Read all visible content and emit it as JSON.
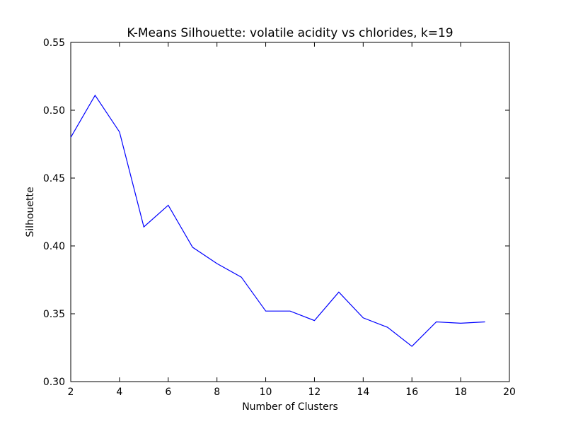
{
  "chart_data": {
    "type": "line",
    "title": "K-Means Silhouette: volatile acidity vs chlorides, k=19",
    "xlabel": "Number of Clusters",
    "ylabel": "Silhouette",
    "xlim": [
      2,
      20
    ],
    "ylim": [
      0.3,
      0.55
    ],
    "xticks": [
      2,
      4,
      6,
      8,
      10,
      12,
      14,
      16,
      18,
      20
    ],
    "yticks": [
      0.3,
      0.35,
      0.4,
      0.45,
      0.5,
      0.55
    ],
    "xtick_labels": [
      "2",
      "4",
      "6",
      "8",
      "10",
      "12",
      "14",
      "16",
      "18",
      "20"
    ],
    "ytick_labels": [
      "0.30",
      "0.35",
      "0.40",
      "0.45",
      "0.50",
      "0.55"
    ],
    "grid": false,
    "series": [
      {
        "color": "#0000ff",
        "x": [
          2,
          3,
          4,
          5,
          6,
          7,
          8,
          9,
          10,
          11,
          12,
          13,
          14,
          15,
          16,
          17,
          18,
          19
        ],
        "y": [
          0.48,
          0.511,
          0.484,
          0.414,
          0.43,
          0.399,
          0.387,
          0.377,
          0.352,
          0.352,
          0.345,
          0.366,
          0.347,
          0.34,
          0.326,
          0.344,
          0.343,
          0.344
        ]
      }
    ]
  }
}
